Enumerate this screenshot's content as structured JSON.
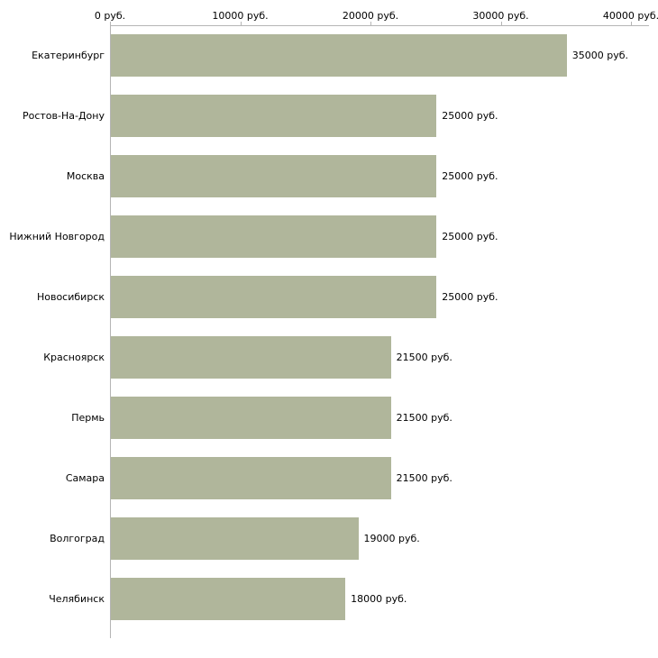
{
  "chart_data": {
    "type": "bar",
    "orientation": "horizontal",
    "title": "",
    "categories": [
      "Екатеринбург",
      "Ростов-На-Дону",
      "Москва",
      "Нижний Новгород",
      "Новосибирск",
      "Красноярск",
      "Пермь",
      "Самара",
      "Волгоград",
      "Челябинск"
    ],
    "values": [
      35000,
      25000,
      25000,
      25000,
      25000,
      21500,
      21500,
      21500,
      19000,
      18000
    ],
    "value_labels": [
      "35000 руб.",
      "25000 руб.",
      "25000 руб.",
      "25000 руб.",
      "25000 руб.",
      "21500 руб.",
      "21500 руб.",
      "21500 руб.",
      "19000 руб.",
      "18000 руб."
    ],
    "x_ticks": [
      {
        "value": 0,
        "label": "0 руб."
      },
      {
        "value": 10000,
        "label": "10000 руб."
      },
      {
        "value": 20000,
        "label": "20000 руб."
      },
      {
        "value": 30000,
        "label": "30000 руб."
      },
      {
        "value": 40000,
        "label": "40000 руб."
      }
    ],
    "xlim": [
      0,
      40000
    ],
    "grid": false,
    "legend": false,
    "bar_color": "#b0b69b",
    "axis_color": "#b5b5b5",
    "text_color": "#000000"
  }
}
